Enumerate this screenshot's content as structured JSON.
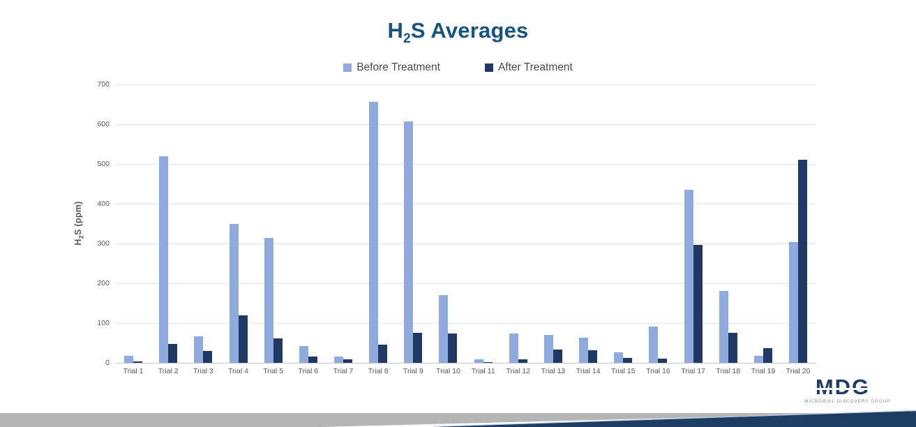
{
  "title": {
    "prefix": "H",
    "subscript": "2",
    "suffix": "S Averages",
    "color": "#16537e"
  },
  "chart_data": {
    "type": "bar",
    "title": "H2S Averages",
    "categories": [
      "Trial 1",
      "Trial 2",
      "Trial 3",
      "Trial 4",
      "Trial 5",
      "Trial 6",
      "Trial 7",
      "Trial 8",
      "Trial 9",
      "Trial 10",
      "Trial 11",
      "Trial 12",
      "Trial 13",
      "Trial 14",
      "Trial 15",
      "Trial 16",
      "Trial 17",
      "Trial 18",
      "Trial 19",
      "Trial 20"
    ],
    "series": [
      {
        "name": "Before Treatment",
        "color": "#8faadc",
        "values": [
          18,
          520,
          67,
          350,
          314,
          43,
          15,
          656,
          607,
          170,
          9,
          73,
          70,
          64,
          26,
          92,
          436,
          180,
          17,
          303
        ]
      },
      {
        "name": "After Treatment",
        "color": "#1f3864",
        "values": [
          3,
          47,
          30,
          119,
          62,
          15,
          8,
          45,
          76,
          74,
          2,
          9,
          34,
          31,
          13,
          10,
          297,
          75,
          37,
          510
        ]
      }
    ],
    "ylabel": {
      "prefix": "H",
      "subscript": "2",
      "suffix": "S (ppm)"
    },
    "yticks": [
      0,
      100,
      200,
      300,
      400,
      500,
      600,
      700
    ],
    "ylim": [
      0,
      700
    ],
    "grid": true,
    "legend_position": "top",
    "xlabel": ""
  },
  "footer": {
    "logo_text": "MDG",
    "logo_subtext": "MICROBIAL DISCOVERY GROUP",
    "gray_band_color": "#b5b5b5",
    "navy_band_color": "#1e3c64",
    "highlight_color": "#b9cadd",
    "logo_color": "#1e3c64"
  }
}
